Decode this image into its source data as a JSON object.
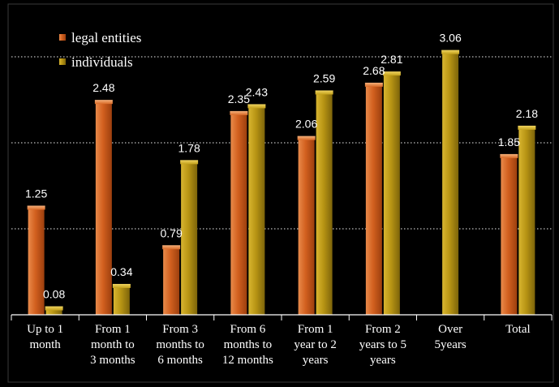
{
  "chart_data": {
    "type": "bar",
    "categories": [
      [
        "Up to 1",
        "month"
      ],
      [
        "From 1",
        "month to",
        "3 months"
      ],
      [
        "From 3",
        "months to",
        "6 months"
      ],
      [
        "From 6",
        "months to",
        "12 months"
      ],
      [
        "From 1",
        "year to 2",
        "years"
      ],
      [
        "From 2",
        "years to 5",
        "years"
      ],
      [
        "Over",
        "5years"
      ],
      [
        "Total"
      ]
    ],
    "series": [
      {
        "name": "legal entities",
        "values": [
          1.25,
          2.48,
          0.79,
          2.35,
          2.06,
          2.68,
          null,
          1.85
        ],
        "labels": [
          "1.25",
          "2.48",
          "0.79",
          "2.35",
          "2.06",
          "2.68",
          "",
          "1.85"
        ],
        "color": "#d2601f"
      },
      {
        "name": "individuals",
        "values": [
          0.08,
          0.34,
          1.78,
          2.43,
          2.59,
          2.81,
          3.06,
          2.18
        ],
        "labels": [
          "0.08",
          "0.34",
          "1.78",
          "2.43",
          "2.59",
          "2.81",
          "3.06",
          "2.18"
        ],
        "color": "#b89514"
      }
    ],
    "ylim": [
      0,
      3.5
    ],
    "gridlines": [
      1,
      2,
      3
    ],
    "grid": true,
    "legend": "top-left",
    "title": "",
    "xlabel": "",
    "ylabel": ""
  }
}
